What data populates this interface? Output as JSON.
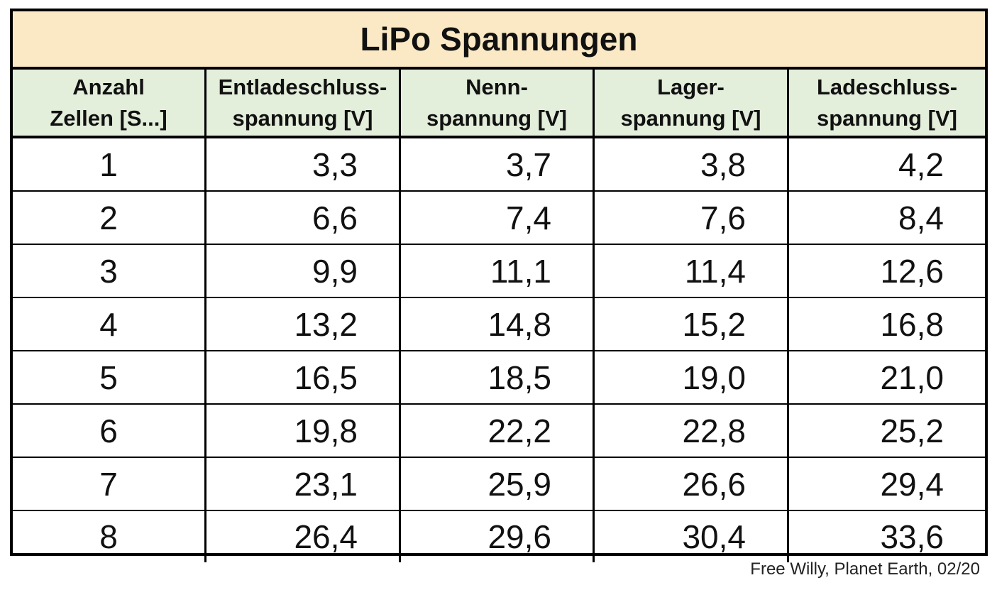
{
  "title": "LiPo Spannungen",
  "columns": [
    {
      "line1": "Anzahl",
      "line2": "Zellen [S...]"
    },
    {
      "line1": "Entladeschluss-",
      "line2": "spannung [V]"
    },
    {
      "line1": "Nenn-",
      "line2": "spannung [V]"
    },
    {
      "line1": "Lager-",
      "line2": "spannung [V]"
    },
    {
      "line1": "Ladeschluss-",
      "line2": "spannung [V]"
    }
  ],
  "rows": [
    [
      "1",
      "3,3",
      "3,7",
      "3,8",
      "4,2"
    ],
    [
      "2",
      "6,6",
      "7,4",
      "7,6",
      "8,4"
    ],
    [
      "3",
      "9,9",
      "11,1",
      "11,4",
      "12,6"
    ],
    [
      "4",
      "13,2",
      "14,8",
      "15,2",
      "16,8"
    ],
    [
      "5",
      "16,5",
      "18,5",
      "19,0",
      "21,0"
    ],
    [
      "6",
      "19,8",
      "22,2",
      "22,8",
      "25,2"
    ],
    [
      "7",
      "23,1",
      "25,9",
      "26,6",
      "29,4"
    ],
    [
      "8",
      "26,4",
      "29,6",
      "30,4",
      "33,6"
    ]
  ],
  "footer": "Free Willy, Planet Earth, 02/20",
  "colors": {
    "title_bg": "#fbe9c5",
    "header_bg": "#e3eedb"
  }
}
